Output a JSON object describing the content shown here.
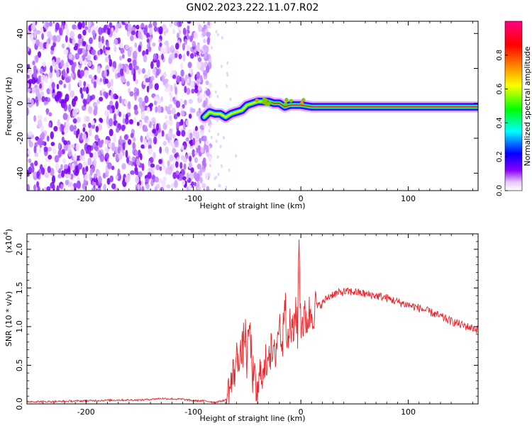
{
  "title": "GN02.2023.222.11.07.R02",
  "chart_data": [
    {
      "type": "heatmap",
      "xlabel": "Height of straight line (km)",
      "ylabel": "Frequency (Hz)",
      "xlim": [
        -255,
        165
      ],
      "ylim": [
        -50,
        47
      ],
      "xticks": [
        -200,
        -100,
        0,
        100
      ],
      "yticks": [
        -40,
        -20,
        0,
        20,
        40
      ],
      "xtick_labels": [
        "-200",
        "-100",
        "0",
        "100"
      ],
      "ytick_labels": [
        "-40",
        "-20",
        "0",
        "20",
        "40"
      ],
      "colorbar": {
        "label": "Normalized spectral amplitude",
        "range": [
          0,
          1
        ],
        "ticks": [
          0.0,
          0.2,
          0.4,
          0.6,
          0.8
        ],
        "tick_labels": [
          "0.0",
          "0.2",
          "0.4",
          "0.6",
          "0.8"
        ],
        "colors": [
          "#ffffff",
          "#8a00ff",
          "#0000ff",
          "#00ffff",
          "#00ff00",
          "#ffff00",
          "#ff8000",
          "#ff0000",
          "#ff0080"
        ]
      },
      "noise_region_x": [
        -255,
        -88
      ],
      "noise_gap_x": [
        -128,
        -118
      ],
      "signal_trace": {
        "x": [
          -90,
          -85,
          -80,
          -75,
          -70,
          -65,
          -60,
          -55,
          -50,
          -45,
          -40,
          -35,
          -30,
          -25,
          -20,
          -15,
          -10,
          -5,
          0,
          10,
          20,
          40,
          60,
          80,
          100,
          120,
          140,
          165
        ],
        "y": [
          -8,
          -5,
          -6,
          -6,
          -8,
          -6,
          -5,
          -4,
          -1,
          0,
          1,
          1,
          1,
          0,
          0,
          -2,
          -1,
          -1,
          -1,
          -2,
          -2,
          -2,
          -2,
          -2,
          -2,
          -2,
          -2,
          -2
        ]
      },
      "grid": false
    },
    {
      "type": "line",
      "xlabel": "Height of straight line (km)",
      "ylabel": "SNR (10 * v/v)",
      "y_multiplier": "(x10",
      "y_multiplier_exp": "4",
      "y_multiplier_close": ")",
      "xlim": [
        -255,
        165
      ],
      "ylim": [
        0,
        2.2
      ],
      "xticks": [
        -200,
        -100,
        0,
        100
      ],
      "yticks": [
        0.0,
        0.5,
        1.0,
        1.5,
        2.0
      ],
      "xtick_labels": [
        "-200",
        "-100",
        "0",
        "100"
      ],
      "ytick_labels": [
        "0.0",
        "0.5",
        "1.0",
        "1.5",
        "2.0"
      ],
      "series": [
        {
          "color": "#e8262b",
          "x": [
            -255,
            -230,
            -200,
            -170,
            -150,
            -130,
            -110,
            -100,
            -90,
            -80,
            -70,
            -65,
            -60,
            -57,
            -55,
            -52,
            -50,
            -48,
            -45,
            -42,
            -40,
            -37,
            -35,
            -30,
            -25,
            -20,
            -17,
            -15,
            -12,
            -10,
            -7,
            -5,
            -3,
            -2,
            0,
            5,
            10,
            15,
            20,
            25,
            30,
            40,
            50,
            60,
            70,
            80,
            90,
            100,
            110,
            120,
            130,
            140,
            150,
            165
          ],
          "y": [
            0.03,
            0.03,
            0.04,
            0.05,
            0.05,
            0.07,
            0.06,
            0.04,
            0.04,
            0.02,
            0.05,
            0.25,
            0.55,
            0.7,
            0.6,
            0.95,
            0.5,
            1.05,
            0.4,
            0.2,
            0.08,
            0.55,
            0.3,
            0.75,
            0.55,
            1.05,
            0.75,
            1.55,
            0.7,
            1.05,
            0.85,
            1.3,
            0.9,
            2.18,
            1.05,
            1.1,
            1.2,
            1.25,
            1.3,
            1.38,
            1.42,
            1.45,
            1.45,
            1.42,
            1.4,
            1.37,
            1.32,
            1.28,
            1.24,
            1.19,
            1.13,
            1.07,
            1.02,
            0.96
          ]
        }
      ],
      "grid": false
    }
  ]
}
